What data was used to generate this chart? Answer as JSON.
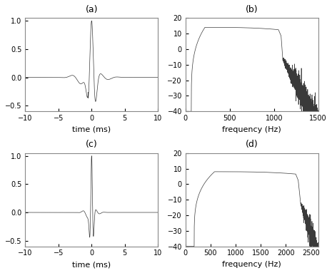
{
  "panel_a": {
    "title": "(a)",
    "xlabel": "time (ms)",
    "xlim": [
      -10,
      10
    ],
    "ylim": [
      -0.6,
      1.05
    ],
    "yticks": [
      -0.5,
      0,
      0.5,
      1.0
    ],
    "xticks": [
      -10,
      -5,
      0,
      5,
      10
    ],
    "dominant_freq": 635,
    "ringing_freq": 350,
    "ringing_decay": 0.0018,
    "pre_ringing_amp": 0.12,
    "post_ringing_amp": 0.08
  },
  "panel_b": {
    "title": "(b)",
    "xlabel": "frequency (Hz)",
    "xlim": [
      0,
      1500
    ],
    "ylim": [
      -40,
      20
    ],
    "yticks": [
      -40,
      -30,
      -20,
      -10,
      0,
      10,
      20
    ],
    "xticks": [
      0,
      500,
      1000,
      1500
    ],
    "passband_low": 220,
    "passband_high": 1050,
    "passband_level": 14.0,
    "rolloff_start": 1080,
    "noise_start": 1100,
    "xlim_max": 1500
  },
  "panel_c": {
    "title": "(c)",
    "xlabel": "time (ms)",
    "xlim": [
      -10,
      10
    ],
    "ylim": [
      -0.6,
      1.05
    ],
    "yticks": [
      -0.5,
      0,
      0.5,
      1.0
    ],
    "xticks": [
      -10,
      -5,
      0,
      5,
      10
    ],
    "dominant_freq": 1390,
    "ringing_freq": 700,
    "ringing_decay": 0.0009,
    "pre_ringing_amp": 0.1,
    "post_ringing_amp": 0.06
  },
  "panel_d": {
    "title": "(d)",
    "xlabel": "frequency (Hz)",
    "xlim": [
      0,
      2650
    ],
    "ylim": [
      -40,
      20
    ],
    "yticks": [
      -40,
      -30,
      -20,
      -10,
      0,
      10,
      20
    ],
    "xticks": [
      0,
      500,
      1000,
      1500,
      2000,
      2500
    ],
    "passband_low": 580,
    "passband_high": 2200,
    "passband_level": 8.0,
    "rolloff_start": 2250,
    "noise_start": 2300,
    "xlim_max": 2650
  },
  "line_color": "#3a3a3a",
  "bg_color": "#ffffff",
  "tick_label_size": 7,
  "axis_label_size": 8,
  "title_size": 9
}
